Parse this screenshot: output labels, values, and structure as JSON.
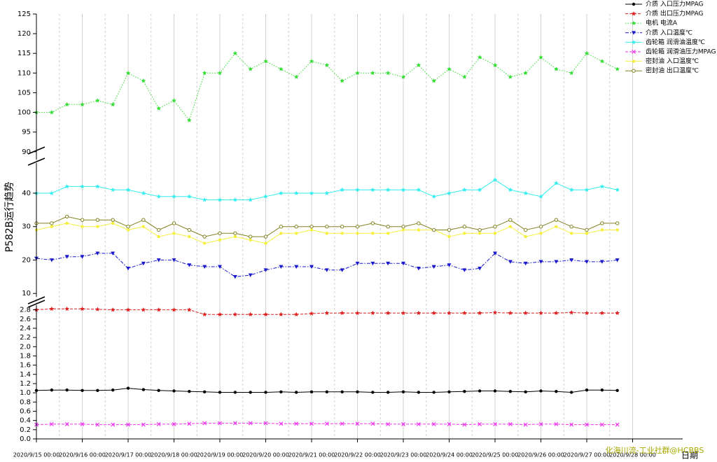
{
  "chart_data": {
    "type": "line",
    "y_label": "P582B运行趋势",
    "x_label": "日期",
    "watermark": "化海川流-工业社群@HCBBS",
    "x": [
      "2020/9/15 00:00",
      "2020/9/15 08:00",
      "2020/9/15 16:00",
      "2020/9/16 00:00",
      "2020/9/16 08:00",
      "2020/9/16 16:00",
      "2020/9/17 00:00",
      "2020/9/17 08:00",
      "2020/9/17 16:00",
      "2020/9/18 00:00",
      "2020/9/18 08:00",
      "2020/9/18 16:00",
      "2020/9/19 00:00",
      "2020/9/19 08:00",
      "2020/9/19 16:00",
      "2020/9/20 00:00",
      "2020/9/20 08:00",
      "2020/9/20 16:00",
      "2020/9/21 00:00",
      "2020/9/21 08:00",
      "2020/9/21 16:00",
      "2020/9/22 00:00",
      "2020/9/22 08:00",
      "2020/9/22 16:00",
      "2020/9/23 00:00",
      "2020/9/23 08:00",
      "2020/9/23 16:00",
      "2020/9/24 00:00",
      "2020/9/24 08:00",
      "2020/9/24 16:00",
      "2020/9/25 00:00",
      "2020/9/25 08:00",
      "2020/9/25 16:00",
      "2020/9/26 00:00",
      "2020/9/26 08:00",
      "2020/9/26 16:00",
      "2020/9/27 00:00",
      "2020/9/27 08:00",
      "2020/9/27 16:00"
    ],
    "xlim": [
      "2020/9/15 00:00",
      "2020/9/29 00:00"
    ],
    "xticks": [
      "2020/9/15 00:00",
      "2020/9/16 00:00",
      "2020/9/17 00:00",
      "2020/9/18 00:00",
      "2020/9/19 00:00",
      "2020/9/20 00:00",
      "2020/9/21 00:00",
      "2020/9/22 00:00",
      "2020/9/23 00:00",
      "2020/9/24 00:00",
      "2020/9/25 00:00",
      "2020/9/26 00:00",
      "2020/9/27 00:00",
      "2020/9/28 00:00"
    ],
    "minor_grid": true,
    "yaxes": [
      {
        "ylim": [
          0,
          2.9
        ],
        "yticks": [
          {
            "value": 0,
            "label": "0.0"
          },
          0.2,
          0.4,
          0.6,
          0.8,
          {
            "value": 1,
            "label": "1.0"
          },
          1.2,
          1.4,
          1.6,
          1.8,
          {
            "value": 2,
            "label": "2.0"
          },
          2.2,
          2.4,
          2.6,
          2.8
        ]
      },
      {
        "ylim": [
          9,
          49
        ],
        "yticks": [
          10,
          20,
          30,
          40
        ]
      },
      {
        "ylim": [
          88,
          125
        ],
        "yticks": [
          90,
          95,
          100,
          105,
          110,
          115,
          120,
          125
        ]
      }
    ],
    "series": [
      {
        "name": "介质 入口压力MPAG",
        "color": "#000000",
        "marker": "circle",
        "dash": "solid",
        "axis": 0,
        "values": [
          1.05,
          1.06,
          1.06,
          1.05,
          1.05,
          1.06,
          1.1,
          1.07,
          1.05,
          1.04,
          1.03,
          1.02,
          1.01,
          1.01,
          1.01,
          1.01,
          1.02,
          1.01,
          1.02,
          1.02,
          1.02,
          1.02,
          1.01,
          1.01,
          1.02,
          1.01,
          1.01,
          1.02,
          1.03,
          1.04,
          1.04,
          1.03,
          1.02,
          1.04,
          1.03,
          1.01,
          1.06,
          1.06,
          1.05
        ]
      },
      {
        "name": "介质 出口压力MPAG",
        "color": "#e02020",
        "marker": "star",
        "dash": "dash",
        "axis": 0,
        "values": [
          2.8,
          2.82,
          2.82,
          2.82,
          2.81,
          2.8,
          2.8,
          2.8,
          2.8,
          2.8,
          2.8,
          2.7,
          2.7,
          2.7,
          2.7,
          2.7,
          2.7,
          2.7,
          2.72,
          2.73,
          2.73,
          2.73,
          2.73,
          2.73,
          2.73,
          2.73,
          2.73,
          2.73,
          2.73,
          2.73,
          2.74,
          2.73,
          2.73,
          2.73,
          2.73,
          2.74,
          2.73,
          2.73,
          2.73
        ]
      },
      {
        "name": "电机 电流A",
        "color": "#33dd33",
        "marker": "star",
        "dash": "dot",
        "axis": 2,
        "values": [
          100,
          100,
          102,
          102,
          103,
          102,
          110,
          108,
          101,
          103,
          98,
          110,
          110,
          115,
          111,
          113,
          111,
          109,
          113,
          112,
          108,
          110,
          110,
          110,
          109,
          112,
          108,
          111,
          109,
          114,
          112,
          109,
          110,
          114,
          111,
          110,
          115,
          113,
          111
        ]
      },
      {
        "name": "介质 入口温度℃",
        "color": "#1a1acc",
        "marker": "triangle-down",
        "dash": "dashdot",
        "axis": 1,
        "values": [
          20.5,
          20,
          21,
          21,
          22,
          22,
          17.5,
          19,
          20,
          20,
          18.5,
          18,
          18,
          15,
          15.5,
          17,
          18,
          18,
          18,
          17,
          17,
          19,
          19,
          19,
          19,
          17.5,
          18,
          18.5,
          17,
          17.5,
          22,
          19.5,
          19,
          19.5,
          19.5,
          20,
          19.5,
          19.5,
          20
        ]
      },
      {
        "name": "齿轮箱 润滑油温度℃",
        "color": "#33eeee",
        "marker": "star",
        "dash": "solid",
        "axis": 1,
        "values": [
          40,
          40,
          42,
          42,
          42,
          41,
          41,
          40,
          39,
          39,
          39,
          38,
          38,
          38,
          38,
          39,
          40,
          40,
          40,
          40,
          41,
          41,
          41,
          41,
          41,
          41,
          39,
          40,
          41,
          41,
          44,
          41,
          40,
          39,
          43,
          41,
          41,
          42,
          41
        ]
      },
      {
        "name": "齿轮箱 润滑油压力MPAG",
        "color": "#ee33ee",
        "marker": "x",
        "dash": "dash",
        "axis": 0,
        "values": [
          0.31,
          0.32,
          0.32,
          0.32,
          0.31,
          0.31,
          0.31,
          0.31,
          0.32,
          0.32,
          0.33,
          0.34,
          0.34,
          0.34,
          0.34,
          0.34,
          0.33,
          0.33,
          0.33,
          0.33,
          0.33,
          0.33,
          0.33,
          0.32,
          0.32,
          0.32,
          0.32,
          0.32,
          0.31,
          0.32,
          0.32,
          0.32,
          0.31,
          0.32,
          0.32,
          0.31,
          0.31,
          0.31,
          0.31
        ]
      },
      {
        "name": "密封油 入口温度℃",
        "color": "#f5f040",
        "marker": "circle",
        "dash": "solid",
        "axis": 1,
        "values": [
          29,
          30,
          31,
          30,
          30,
          31,
          29,
          30,
          27,
          28,
          27,
          25,
          26,
          27,
          26,
          25,
          28,
          28,
          29,
          28,
          28,
          28,
          28,
          28,
          29,
          29,
          29,
          27,
          28,
          28,
          28,
          30,
          27,
          28,
          30,
          28,
          28,
          29,
          29
        ]
      },
      {
        "name": "密封油 出口温度℃",
        "color": "#808020",
        "marker": "circle-open",
        "dash": "solid",
        "axis": 1,
        "values": [
          31,
          31,
          33,
          32,
          32,
          32,
          30,
          32,
          29,
          31,
          29,
          27,
          28,
          28,
          27,
          27,
          30,
          30,
          30,
          30,
          30,
          30,
          31,
          30,
          30,
          31,
          29,
          29,
          30,
          29,
          30,
          32,
          29,
          30,
          32,
          30,
          29,
          31,
          31
        ]
      }
    ]
  }
}
